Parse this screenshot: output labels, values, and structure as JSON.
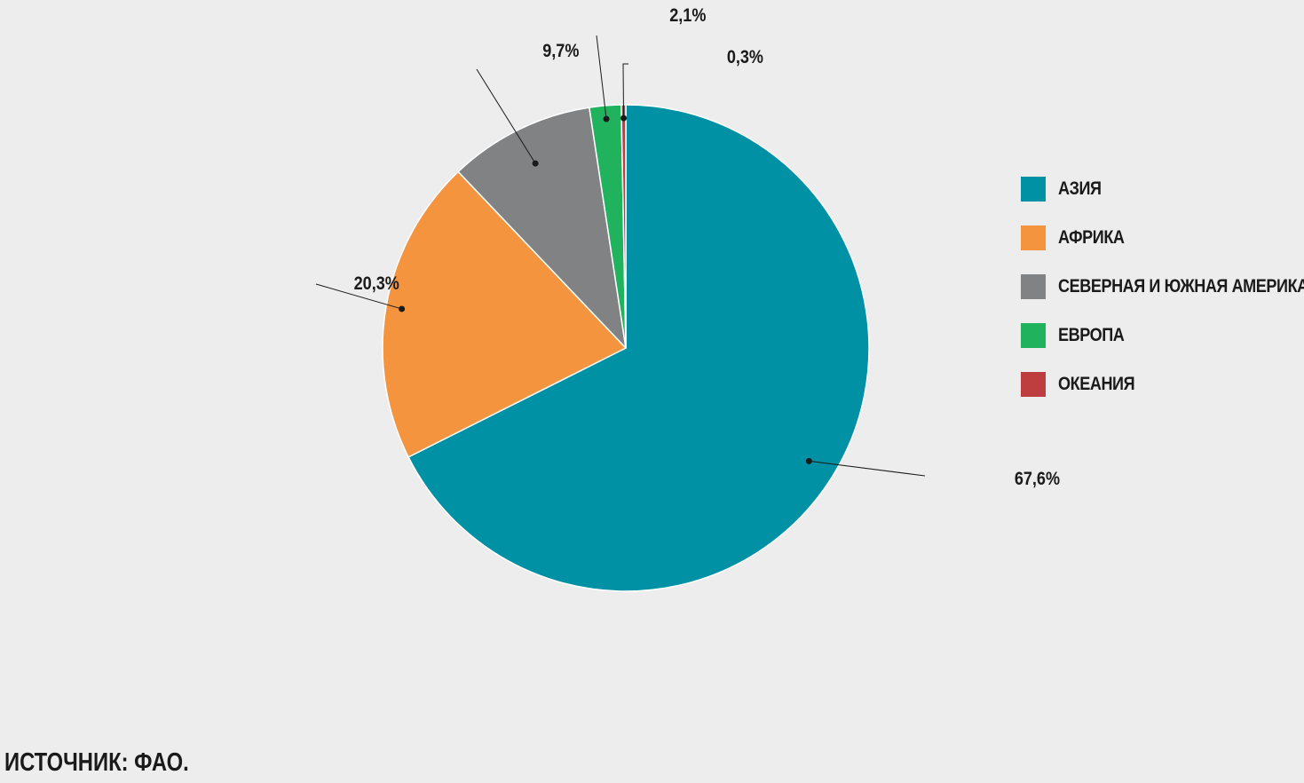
{
  "chart_data": {
    "type": "pie",
    "categories": [
      "АЗИЯ",
      "АФРИКА",
      "СЕВЕРНАЯ И ЮЖНАЯ АМЕРИКА",
      "ЕВРОПА",
      "ОКЕАНИЯ"
    ],
    "values": [
      67.6,
      20.3,
      9.7,
      2.1,
      0.3
    ],
    "labels": [
      "67,6%",
      "20,3%",
      "9,7%",
      "2,1%",
      "0,3%"
    ],
    "colors": [
      "#0091a4",
      "#f4943f",
      "#818284",
      "#21b25e",
      "#be3e3f"
    ],
    "direction": "clockwise",
    "start_angle": "top",
    "legend_position": "right"
  },
  "source_note": "ИСТОЧНИК: ФАО."
}
